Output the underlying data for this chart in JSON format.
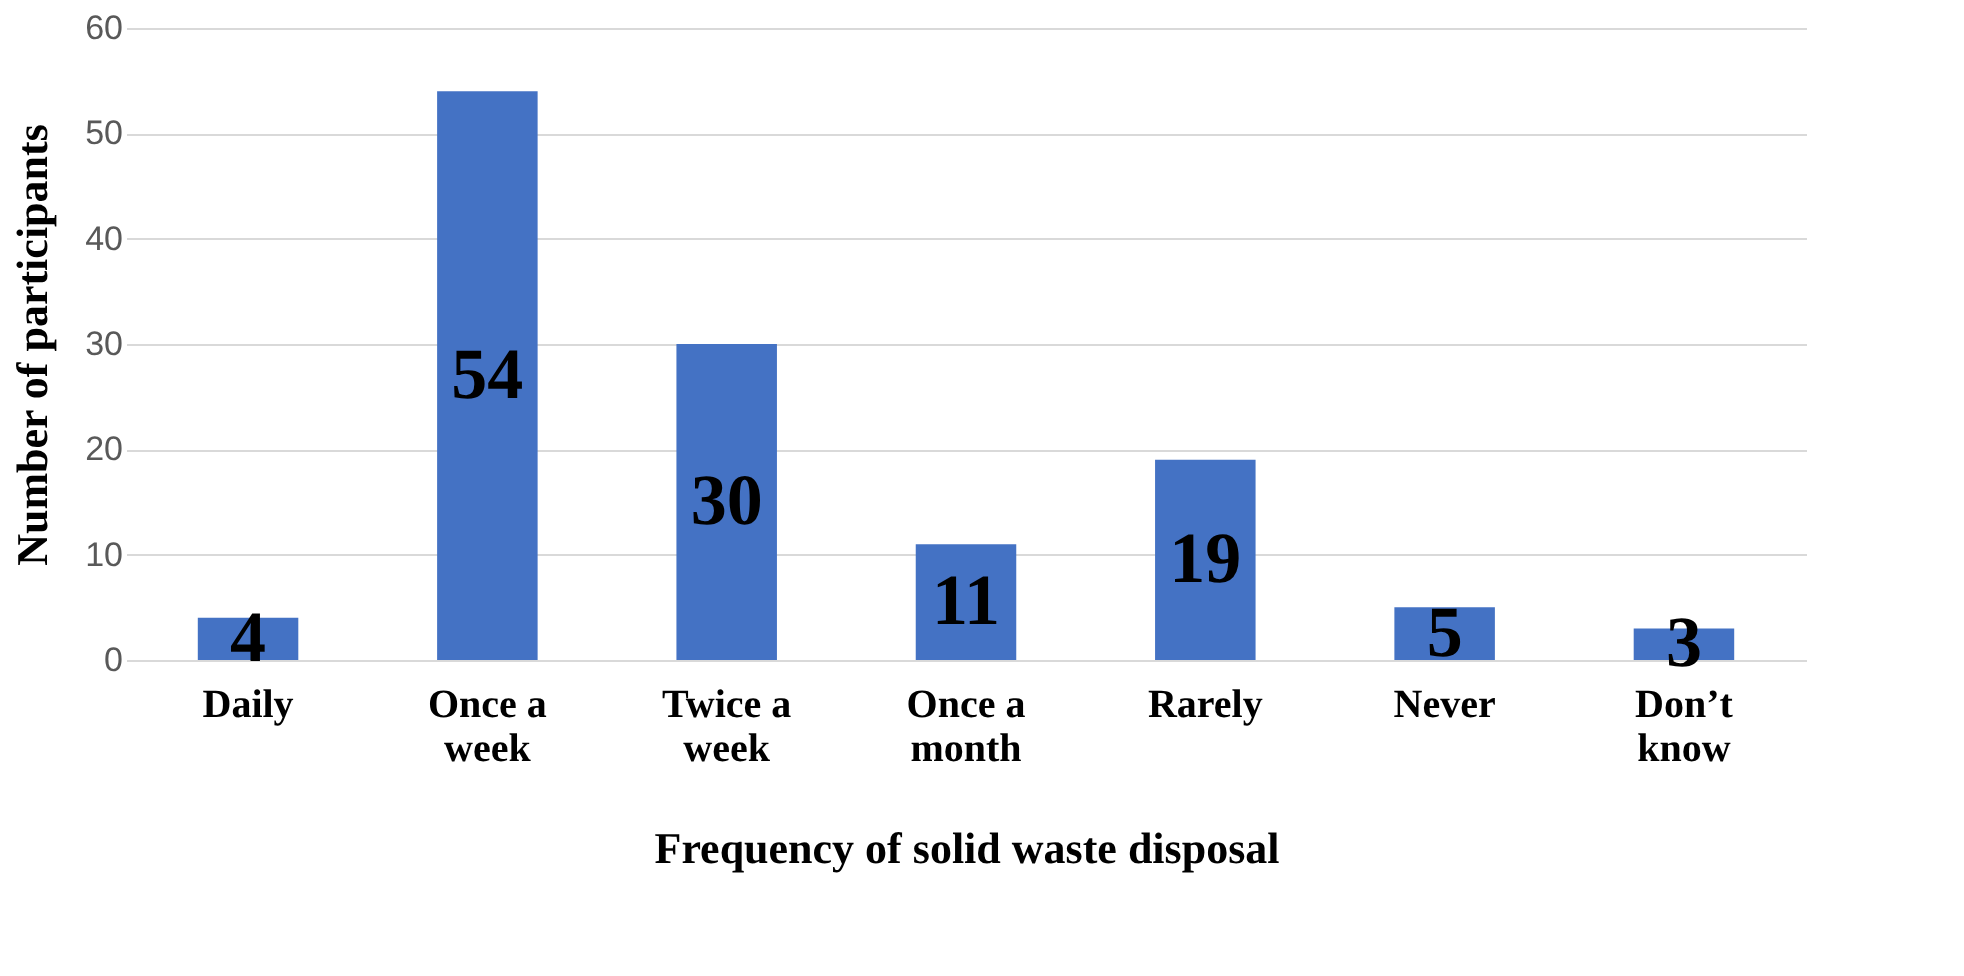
{
  "chart_data": {
    "type": "bar",
    "xlabel": "Frequency of solid waste disposal",
    "ylabel": "Number of participants",
    "categories": [
      "Daily",
      "Once a\nweek",
      "Twice a\nweek",
      "Once a\nmonth",
      "Rarely",
      "Never",
      "Don’t\nknow"
    ],
    "values": [
      4,
      54,
      30,
      11,
      19,
      5,
      3
    ],
    "color": "#4472c4",
    "ylim": [
      0,
      60
    ],
    "yticks": [
      0,
      10,
      20,
      30,
      40,
      50,
      60
    ],
    "grid": "y",
    "data_labels": true
  }
}
